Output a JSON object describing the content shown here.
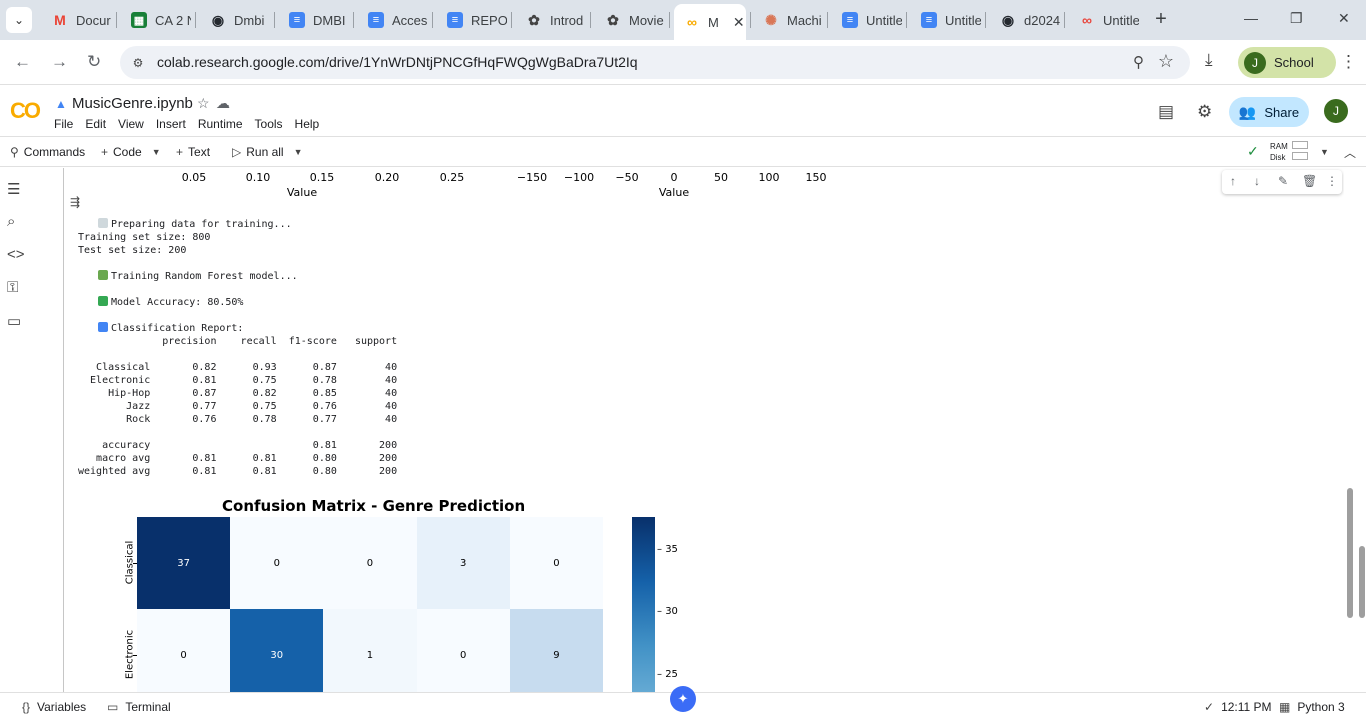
{
  "tabs": [
    {
      "label": "Docur",
      "icon": "gmail-icon",
      "color": "#ea4335"
    },
    {
      "label": "CA 2 N",
      "icon": "sheets-icon",
      "color": "#188038"
    },
    {
      "label": "Dmbi",
      "icon": "github-icon",
      "color": "#24292f"
    },
    {
      "label": "DMBI",
      "icon": "docs-icon",
      "color": "#4285f4"
    },
    {
      "label": "Acces",
      "icon": "docs-icon",
      "color": "#4285f4"
    },
    {
      "label": "REPOI",
      "icon": "docs-icon",
      "color": "#4285f4"
    },
    {
      "label": "Introd",
      "icon": "chatgpt-icon",
      "color": "#444444"
    },
    {
      "label": "Movie",
      "icon": "chatgpt-icon",
      "color": "#444444"
    },
    {
      "label": "M",
      "icon": "colab-icon",
      "color": "#f9ab00"
    },
    {
      "label": "Machi",
      "icon": "claude-icon",
      "color": "#d97757"
    },
    {
      "label": "Untitle",
      "icon": "docs-icon",
      "color": "#4285f4"
    },
    {
      "label": "Untitle",
      "icon": "docs-icon",
      "color": "#4285f4"
    },
    {
      "label": "d2024",
      "icon": "github-icon",
      "color": "#24292f"
    },
    {
      "label": "Untitle",
      "icon": "colab-icon",
      "color": "#e8453c"
    }
  ],
  "address_bar": {
    "url": "colab.research.google.com/drive/1YnWrDNtjPNCGfHqFWQgWgBaDra7Ut2Iq",
    "profile_initial": "J",
    "profile_label": "School"
  },
  "colab": {
    "logo": "CO",
    "notebook_title": "MusicGenre.ipynb",
    "menu": [
      "File",
      "Edit",
      "View",
      "Insert",
      "Runtime",
      "Tools",
      "Help"
    ],
    "share_label": "Share",
    "user_initial": "J"
  },
  "toolbar": {
    "commands_label": "Commands",
    "code_label": "Code",
    "text_label": "Text",
    "run_all_label": "Run all",
    "ram_label": "RAM",
    "disk_label": "Disk"
  },
  "prev_output_axes": {
    "left_ticks": [
      "0.05",
      "0.10",
      "0.15",
      "0.20",
      "0.25"
    ],
    "right_ticks": [
      "−150",
      "−100",
      "−50",
      "0",
      "50",
      "100",
      "150"
    ],
    "left_xlabel": "Value",
    "right_xlabel": "Value"
  },
  "console": {
    "preparing": "Preparing data for training...",
    "train_size": "Training set size: 800",
    "test_size": "Test set size: 200",
    "training": "Training Random Forest model...",
    "accuracy": "Model Accuracy: 80.50%",
    "report_title": "Classification Report:",
    "report_header": "              precision    recall  f1-score   support",
    "report_rows": [
      "   Classical       0.82      0.93      0.87        40",
      "  Electronic       0.81      0.75      0.78        40",
      "     Hip-Hop       0.87      0.82      0.85        40",
      "        Jazz       0.77      0.75      0.76        40",
      "        Rock       0.76      0.78      0.77        40"
    ],
    "report_summary": [
      "    accuracy                           0.81       200",
      "   macro avg       0.81      0.81      0.80       200",
      "weighted avg       0.81      0.81      0.80       200"
    ]
  },
  "chart_data": {
    "type": "heatmap",
    "title": "Confusion Matrix - Genre Prediction",
    "row_labels": [
      "Classical",
      "Electronic"
    ],
    "columns_visible": 5,
    "values": [
      [
        37,
        0,
        0,
        3,
        0
      ],
      [
        0,
        30,
        1,
        0,
        9
      ]
    ],
    "colormap": "Blues",
    "colorbar_ticks": [
      35,
      30,
      25
    ]
  },
  "statusbar": {
    "variables_label": "Variables",
    "terminal_label": "Terminal",
    "time_label": "12:11 PM",
    "runtime_label": "Python 3"
  }
}
